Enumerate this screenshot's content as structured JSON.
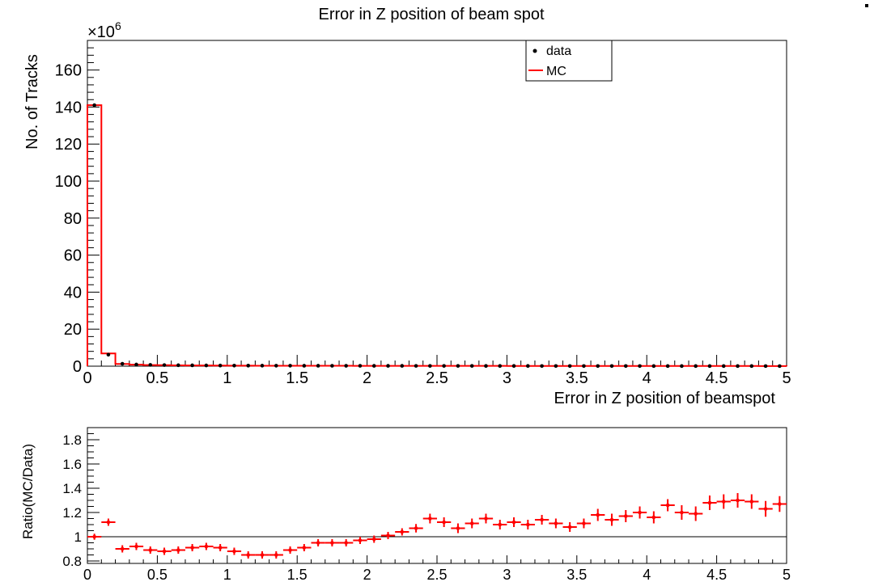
{
  "chart_data": [
    {
      "type": "histogram",
      "title": "Error in Z position of beam spot",
      "xlabel": "Error in Z position of beamspot",
      "ylabel": "No. of Tracks",
      "y_multiplier": "×10",
      "y_multiplier_exp": "6",
      "xlim": [
        0,
        5
      ],
      "ylim": [
        0,
        176
      ],
      "x_ticks": [
        "0",
        "0.5",
        "1",
        "1.5",
        "2",
        "2.5",
        "3",
        "3.5",
        "4",
        "4.5",
        "5"
      ],
      "y_ticks": [
        "0",
        "20",
        "40",
        "60",
        "80",
        "100",
        "120",
        "140",
        "160"
      ],
      "bin_width": 0.1,
      "series": [
        {
          "name": "data",
          "style": "markers",
          "color": "#000000",
          "x": [
            0.05,
            0.15,
            0.25,
            0.35,
            0.45,
            0.55,
            0.65,
            0.75,
            0.85,
            0.95,
            1.05,
            1.15,
            1.25,
            1.35,
            1.45,
            1.55,
            1.65,
            1.75,
            1.85,
            1.95,
            2.05,
            2.15,
            2.25,
            2.35,
            2.45,
            2.55,
            2.65,
            2.75,
            2.85,
            2.95,
            3.05,
            3.15,
            3.25,
            3.35,
            3.45,
            3.55,
            3.65,
            3.75,
            3.85,
            3.95,
            4.05,
            4.15,
            4.25,
            4.35,
            4.45,
            4.55,
            4.65,
            4.75,
            4.85,
            4.95
          ],
          "y": [
            141,
            6.2,
            1.3,
            0.9,
            0.7,
            0.6,
            0.5,
            0.45,
            0.4,
            0.35,
            0.32,
            0.3,
            0.28,
            0.26,
            0.25,
            0.24,
            0.23,
            0.22,
            0.21,
            0.2,
            0.19,
            0.18,
            0.17,
            0.16,
            0.15,
            0.15,
            0.14,
            0.14,
            0.13,
            0.13,
            0.12,
            0.12,
            0.11,
            0.11,
            0.1,
            0.1,
            0.1,
            0.09,
            0.09,
            0.09,
            0.08,
            0.08,
            0.08,
            0.08,
            0.07,
            0.07,
            0.07,
            0.07,
            0.06,
            0.06
          ]
        },
        {
          "name": "MC",
          "style": "step",
          "color": "#ff0000",
          "y": [
            141,
            6.9,
            1.2,
            0.8,
            0.6,
            0.55,
            0.45,
            0.4,
            0.36,
            0.32,
            0.28,
            0.26,
            0.24,
            0.22,
            0.22,
            0.22,
            0.22,
            0.21,
            0.2,
            0.19,
            0.19,
            0.18,
            0.17,
            0.17,
            0.17,
            0.17,
            0.15,
            0.16,
            0.15,
            0.14,
            0.13,
            0.13,
            0.12,
            0.12,
            0.11,
            0.11,
            0.12,
            0.1,
            0.1,
            0.11,
            0.09,
            0.1,
            0.1,
            0.1,
            0.09,
            0.09,
            0.09,
            0.09,
            0.07,
            0.08
          ]
        }
      ],
      "legend": {
        "position": "top-right",
        "entries": [
          "data",
          "MC"
        ]
      },
      "grid": false
    },
    {
      "type": "scatter",
      "xlabel": "",
      "ylabel": "Ratio(MC/Data)",
      "xlim": [
        0,
        5
      ],
      "ylim": [
        0.78,
        1.9
      ],
      "x_ticks": [
        "0",
        "0.5",
        "1",
        "1.5",
        "2",
        "2.5",
        "3",
        "3.5",
        "4",
        "4.5",
        "5"
      ],
      "y_ticks": [
        "0.8",
        "1",
        "1.2",
        "1.4",
        "1.6",
        "1.8"
      ],
      "reference_line": 1,
      "color": "#ff0000",
      "x": [
        0.05,
        0.15,
        0.25,
        0.35,
        0.45,
        0.55,
        0.65,
        0.75,
        0.85,
        0.95,
        1.05,
        1.15,
        1.25,
        1.35,
        1.45,
        1.55,
        1.65,
        1.75,
        1.85,
        1.95,
        2.05,
        2.15,
        2.25,
        2.35,
        2.45,
        2.55,
        2.65,
        2.75,
        2.85,
        2.95,
        3.05,
        3.15,
        3.25,
        3.35,
        3.45,
        3.55,
        3.65,
        3.75,
        3.85,
        3.95,
        4.05,
        4.15,
        4.25,
        4.35,
        4.45,
        4.55,
        4.65,
        4.75,
        4.85,
        4.95
      ],
      "y": [
        1.0,
        1.12,
        0.9,
        0.92,
        0.89,
        0.88,
        0.89,
        0.91,
        0.92,
        0.91,
        0.88,
        0.85,
        0.85,
        0.85,
        0.89,
        0.91,
        0.95,
        0.95,
        0.95,
        0.97,
        0.98,
        1.01,
        1.04,
        1.07,
        1.15,
        1.12,
        1.07,
        1.11,
        1.15,
        1.1,
        1.12,
        1.1,
        1.14,
        1.11,
        1.08,
        1.11,
        1.18,
        1.14,
        1.17,
        1.2,
        1.16,
        1.26,
        1.2,
        1.19,
        1.28,
        1.29,
        1.3,
        1.29,
        1.23,
        1.27
      ],
      "y_err": [
        0.005,
        0.01,
        0.01,
        0.01,
        0.01,
        0.01,
        0.01,
        0.01,
        0.01,
        0.01,
        0.01,
        0.01,
        0.01,
        0.01,
        0.01,
        0.01,
        0.01,
        0.01,
        0.01,
        0.01,
        0.01,
        0.01,
        0.01,
        0.015,
        0.02,
        0.02,
        0.02,
        0.02,
        0.02,
        0.02,
        0.02,
        0.02,
        0.02,
        0.02,
        0.02,
        0.02,
        0.03,
        0.03,
        0.03,
        0.03,
        0.03,
        0.03,
        0.04,
        0.04,
        0.04,
        0.04,
        0.04,
        0.04,
        0.045,
        0.045
      ],
      "grid": false
    }
  ]
}
